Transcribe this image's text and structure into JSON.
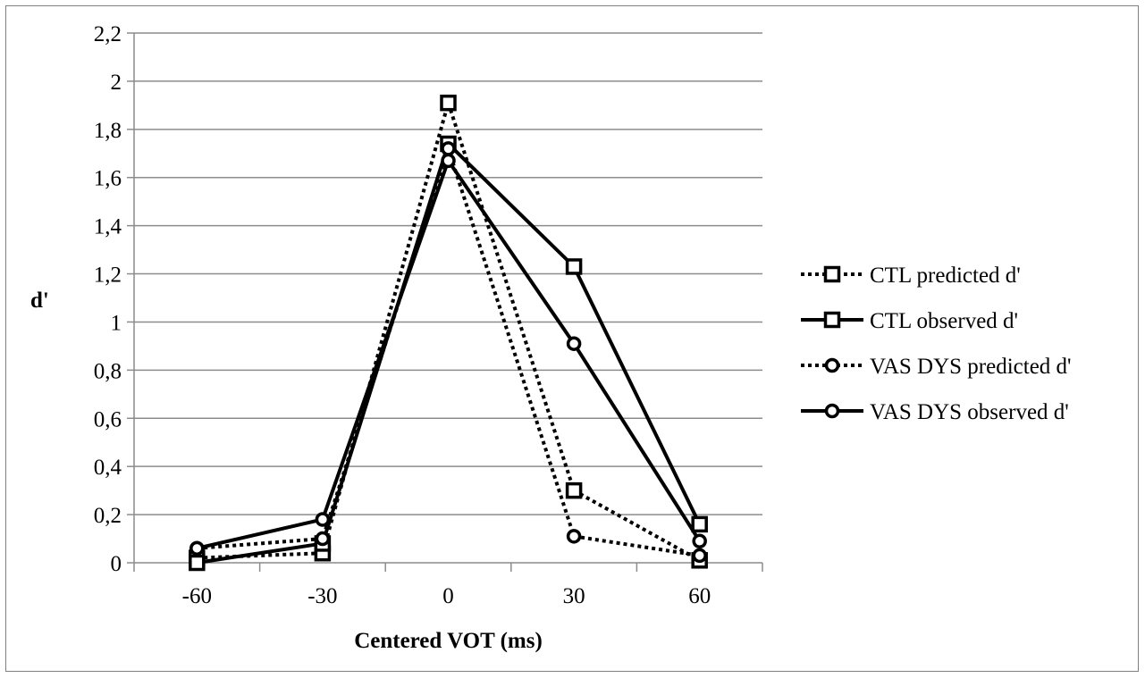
{
  "chart_data": {
    "type": "line",
    "title": "",
    "xlabel": "Centered VOT (ms)",
    "ylabel": "d'",
    "categories": [
      "-60",
      "-30",
      "0",
      "30",
      "60"
    ],
    "ylim": [
      0,
      2.2
    ],
    "y_ticks": [
      "0",
      "0,2",
      "0,4",
      "0,6",
      "0,8",
      "1",
      "1,2",
      "1,4",
      "1,6",
      "1,8",
      "2",
      "2,2"
    ],
    "grid": "horizontal",
    "legend_position": "right",
    "series": [
      {
        "name": "CTL predicted d'",
        "marker": "square",
        "line_style": "dotted",
        "color": "#000000",
        "values": [
          0.02,
          0.04,
          1.91,
          0.3,
          0.01
        ]
      },
      {
        "name": "CTL observed d'",
        "marker": "square",
        "line_style": "solid",
        "color": "#000000",
        "values": [
          0.0,
          0.08,
          1.74,
          1.23,
          0.16
        ]
      },
      {
        "name": "VAS DYS predicted d'",
        "marker": "circle",
        "line_style": "dotted",
        "color": "#000000",
        "values": [
          0.06,
          0.1,
          1.72,
          0.11,
          0.03
        ]
      },
      {
        "name": "VAS DYS observed d'",
        "marker": "circle",
        "line_style": "solid",
        "color": "#000000",
        "values": [
          0.06,
          0.18,
          1.67,
          0.91,
          0.09
        ]
      }
    ]
  }
}
